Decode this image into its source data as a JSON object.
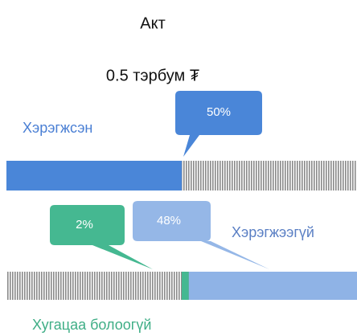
{
  "title": "Акт",
  "amount": "0.5 тэрбум ₮",
  "implemented": {
    "label": "Хэрэгжсэн",
    "value": 50,
    "value_label": "50%",
    "color": "#4a86d8"
  },
  "not_implemented": {
    "label": "Хэрэгжээгүй",
    "value": 48,
    "value_label": "48%",
    "color": "#8fb3e6"
  },
  "not_due": {
    "label": "Хугацаа болоогүй",
    "value": 2,
    "value_label": "2%",
    "color": "#45b891"
  }
}
